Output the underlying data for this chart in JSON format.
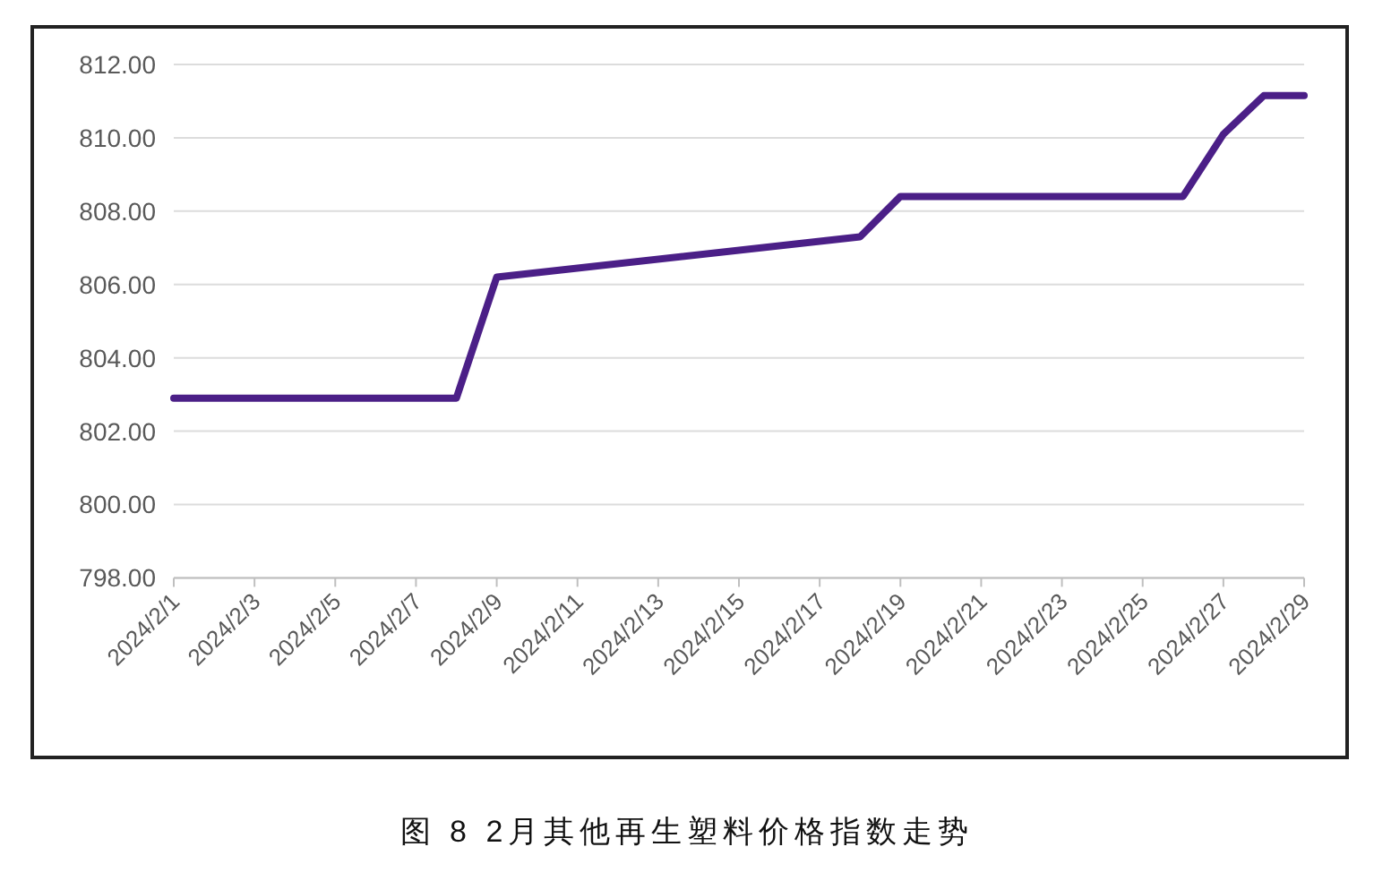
{
  "chart_data": {
    "type": "line",
    "annotations": [
      "图 8 2月其他再生塑料价格指数走势"
    ],
    "x": [
      "2024-02-01",
      "2024-02-02",
      "2024-02-03",
      "2024-02-04",
      "2024-02-05",
      "2024-02-06",
      "2024-02-07",
      "2024-02-08",
      "2024-02-09",
      "2024-02-18",
      "2024-02-19",
      "2024-02-20",
      "2024-02-21",
      "2024-02-22",
      "2024-02-23",
      "2024-02-24",
      "2024-02-25",
      "2024-02-26",
      "2024-02-27",
      "2024-02-28",
      "2024-02-29"
    ],
    "series": [
      {
        "color": "#4b1f87",
        "values": [
          802.9,
          802.9,
          802.9,
          802.9,
          802.9,
          802.9,
          802.9,
          802.9,
          806.2,
          807.3,
          808.4,
          808.4,
          808.4,
          808.4,
          808.4,
          808.4,
          808.4,
          808.4,
          810.1,
          811.15,
          811.15
        ]
      }
    ],
    "xlim": [
      "2024-02-01",
      "2024-02-29"
    ],
    "xticks": [
      {
        "value": "2024-02-01",
        "label": "2024/2/1"
      },
      {
        "value": "2024-02-03",
        "label": "2024/2/3"
      },
      {
        "value": "2024-02-05",
        "label": "2024/2/5"
      },
      {
        "value": "2024-02-07",
        "label": "2024/2/7"
      },
      {
        "value": "2024-02-09",
        "label": "2024/2/9"
      },
      {
        "value": "2024-02-11",
        "label": "2024/2/11"
      },
      {
        "value": "2024-02-13",
        "label": "2024/2/13"
      },
      {
        "value": "2024-02-15",
        "label": "2024/2/15"
      },
      {
        "value": "2024-02-17",
        "label": "2024/2/17"
      },
      {
        "value": "2024-02-19",
        "label": "2024/2/19"
      },
      {
        "value": "2024-02-21",
        "label": "2024/2/21"
      },
      {
        "value": "2024-02-23",
        "label": "2024/2/23"
      },
      {
        "value": "2024-02-25",
        "label": "2024/2/25"
      },
      {
        "value": "2024-02-27",
        "label": "2024/2/27"
      },
      {
        "value": "2024-02-29",
        "label": "2024/2/29"
      }
    ],
    "ylim": [
      798,
      812
    ],
    "yticks": [
      {
        "value": 798,
        "label": "798.00"
      },
      {
        "value": 800,
        "label": "800.00"
      },
      {
        "value": 802,
        "label": "802.00"
      },
      {
        "value": 804,
        "label": "804.00"
      },
      {
        "value": 806,
        "label": "806.00"
      },
      {
        "value": 808,
        "label": "808.00"
      },
      {
        "value": 810,
        "label": "810.00"
      },
      {
        "value": 812,
        "label": "812.00"
      }
    ],
    "grid": "y",
    "marker": "none",
    "line_style": "solid"
  }
}
